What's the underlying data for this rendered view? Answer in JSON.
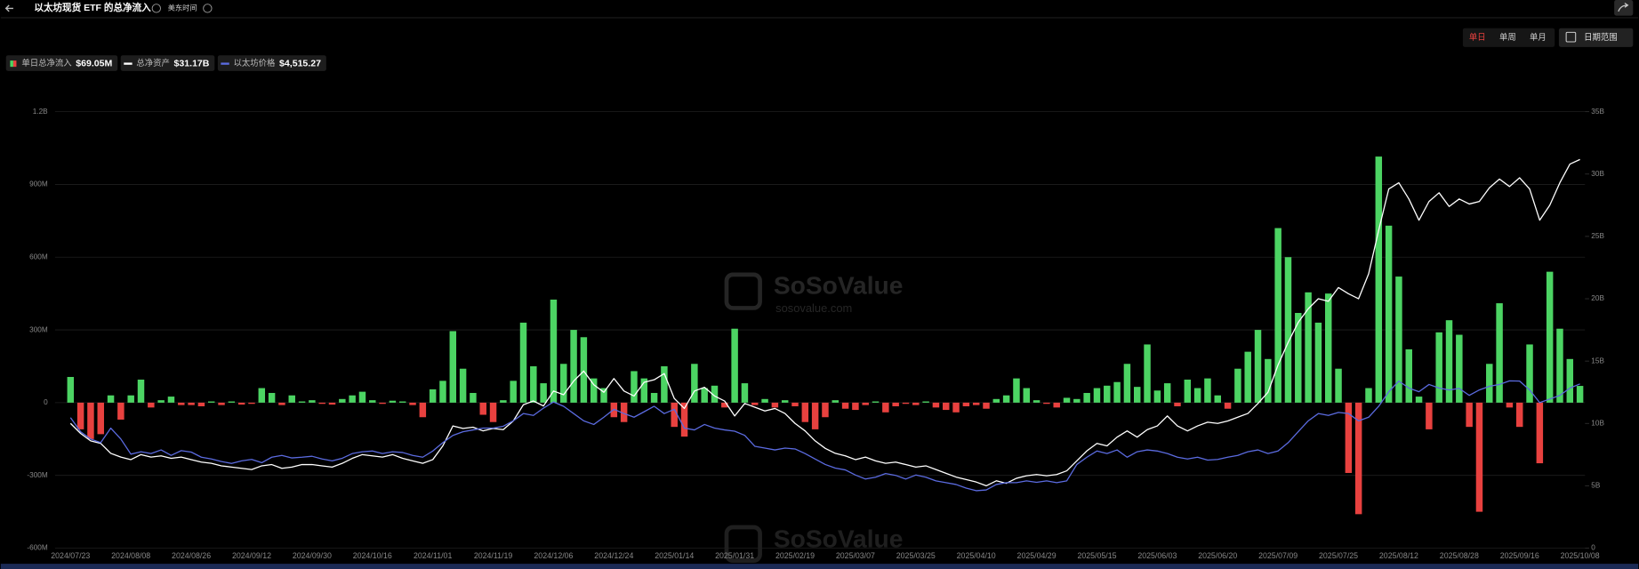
{
  "header": {
    "title": "以太坊现货 ETF 的总净流入",
    "timezone": "美东时间"
  },
  "controls": {
    "periods": [
      "单日",
      "单周",
      "单月"
    ],
    "active_period": 0,
    "date_range": "日期范围"
  },
  "watermark": {
    "name": "SoSoValue",
    "url": "sosovalue.com"
  },
  "chart_data": {
    "type": "bar",
    "categories": [
      "2024/07/23",
      null,
      null,
      null,
      null,
      null,
      "2024/08/08",
      null,
      null,
      null,
      null,
      null,
      "2024/08/26",
      null,
      null,
      null,
      null,
      null,
      "2024/09/12",
      null,
      null,
      null,
      null,
      null,
      "2024/09/30",
      null,
      null,
      null,
      null,
      null,
      "2024/10/16",
      null,
      null,
      null,
      null,
      null,
      "2024/11/01",
      null,
      null,
      null,
      null,
      null,
      "2024/11/19",
      null,
      null,
      null,
      null,
      null,
      "2024/12/06",
      null,
      null,
      null,
      null,
      null,
      "2024/12/24",
      null,
      null,
      null,
      null,
      null,
      "2025/01/14",
      null,
      null,
      null,
      null,
      null,
      "2025/01/31",
      null,
      null,
      null,
      null,
      null,
      "2025/02/19",
      null,
      null,
      null,
      null,
      null,
      "2025/03/07",
      null,
      null,
      null,
      null,
      null,
      "2025/03/25",
      null,
      null,
      null,
      null,
      null,
      "2025/04/10",
      null,
      null,
      null,
      null,
      null,
      "2025/04/29",
      null,
      null,
      null,
      null,
      null,
      "2025/05/15",
      null,
      null,
      null,
      null,
      null,
      "2025/06/03",
      null,
      null,
      null,
      null,
      null,
      "2025/06/20",
      null,
      null,
      null,
      null,
      null,
      "2025/07/09",
      null,
      null,
      null,
      null,
      null,
      "2025/07/25",
      null,
      null,
      null,
      null,
      null,
      "2025/08/12",
      null,
      null,
      null,
      null,
      null,
      "2025/08/28",
      null,
      null,
      null,
      null,
      null,
      "2025/09/16",
      null,
      null,
      null,
      null,
      null,
      "2025/10/08"
    ],
    "series": [
      {
        "name": "单日总净流入",
        "type": "bar",
        "axis": "y",
        "color": "#4cd463",
        "negative_color": "#e8413f",
        "latest_label": "$69.05M",
        "values": [
          106,
          -110,
          -150,
          -130,
          30,
          -70,
          30,
          95,
          -20,
          10,
          25,
          -10,
          -10,
          -15,
          5,
          -10,
          5,
          -8,
          -5,
          60,
          40,
          -10,
          30,
          5,
          10,
          -5,
          -8,
          15,
          30,
          45,
          10,
          -5,
          8,
          5,
          -10,
          -60,
          55,
          90,
          295,
          140,
          40,
          -50,
          -80,
          10,
          90,
          330,
          150,
          80,
          425,
          160,
          300,
          270,
          100,
          60,
          -60,
          -80,
          130,
          100,
          40,
          150,
          -100,
          -140,
          160,
          60,
          70,
          -20,
          305,
          80,
          -10,
          15,
          -20,
          10,
          -15,
          -80,
          -110,
          -60,
          10,
          -25,
          -30,
          -10,
          5,
          -40,
          -15,
          -5,
          -10,
          5,
          -20,
          -30,
          -40,
          -15,
          -10,
          -25,
          15,
          30,
          100,
          60,
          10,
          -5,
          -20,
          20,
          15,
          40,
          60,
          70,
          85,
          160,
          65,
          240,
          50,
          80,
          -15,
          95,
          60,
          100,
          30,
          -25,
          140,
          210,
          300,
          180,
          720,
          600,
          370,
          455,
          330,
          450,
          140,
          -290,
          -460,
          60,
          1015,
          730,
          520,
          220,
          25,
          -110,
          290,
          340,
          280,
          -100,
          -450,
          160,
          410,
          -20,
          -100,
          240,
          -250,
          540,
          305,
          180,
          69.05
        ]
      },
      {
        "name": "总净资产",
        "type": "line",
        "axis": "y2",
        "color": "#ffffff",
        "latest_label": "$31.17B",
        "values": [
          10.0,
          9.2,
          8.6,
          8.4,
          7.6,
          7.3,
          7.1,
          7.5,
          7.3,
          7.4,
          7.2,
          7.3,
          7.1,
          6.9,
          6.8,
          6.6,
          6.5,
          6.4,
          6.3,
          6.6,
          6.7,
          6.4,
          6.5,
          6.7,
          6.7,
          6.6,
          6.5,
          6.8,
          7.2,
          7.5,
          7.4,
          7.3,
          7.5,
          7.2,
          7.0,
          6.8,
          7.1,
          8.2,
          9.8,
          9.6,
          9.7,
          9.4,
          9.6,
          9.5,
          10.2,
          11.5,
          11.8,
          11.4,
          12.6,
          12.3,
          13.4,
          14.2,
          13.1,
          12.5,
          13.6,
          12.6,
          12.2,
          13.3,
          13.5,
          14.0,
          12.0,
          11.2,
          12.6,
          12.9,
          12.2,
          11.8,
          10.6,
          11.6,
          11.3,
          11.0,
          11.2,
          10.8,
          10.0,
          9.4,
          8.6,
          8.0,
          7.6,
          7.4,
          7.1,
          7.3,
          7.0,
          6.8,
          6.9,
          6.7,
          6.5,
          6.6,
          6.3,
          6.0,
          5.7,
          5.5,
          5.3,
          5.0,
          5.4,
          5.2,
          5.6,
          5.8,
          5.9,
          5.8,
          5.9,
          6.2,
          7.0,
          7.8,
          8.4,
          8.2,
          8.9,
          9.4,
          8.9,
          9.5,
          9.8,
          10.6,
          9.8,
          9.4,
          9.8,
          10.1,
          10.0,
          10.2,
          10.5,
          10.8,
          11.6,
          12.5,
          14.7,
          16.5,
          18.1,
          19.2,
          20.0,
          19.8,
          20.9,
          20.4,
          20.0,
          22.0,
          25.5,
          28.8,
          29.3,
          28.0,
          26.3,
          27.8,
          28.5,
          27.4,
          28.0,
          27.6,
          27.8,
          28.9,
          29.6,
          29.0,
          29.7,
          28.8,
          26.3,
          27.5,
          29.3,
          30.8,
          31.17
        ]
      },
      {
        "name": "以太坊价格",
        "type": "line",
        "axis": "y3",
        "color": "#5b6be0",
        "latest_label": "$4,515.27",
        "values": [
          3589,
          3200,
          3000,
          2900,
          3300,
          3000,
          2584,
          2650,
          2600,
          2700,
          2550,
          2680,
          2641,
          2500,
          2450,
          2380,
          2330,
          2400,
          2440,
          2350,
          2500,
          2550,
          2480,
          2500,
          2526,
          2450,
          2400,
          2470,
          2600,
          2650,
          2670,
          2600,
          2650,
          2630,
          2550,
          2500,
          2670,
          2900,
          3100,
          3200,
          3250,
          3300,
          3300,
          3350,
          3500,
          3700,
          3650,
          3850,
          4019,
          3900,
          3700,
          3500,
          3400,
          3600,
          3818,
          3700,
          3600,
          3750,
          3900,
          3700,
          3818,
          3300,
          3250,
          3400,
          3300,
          3250,
          3215,
          3100,
          2800,
          2750,
          2700,
          2750,
          2727,
          2600,
          2450,
          2300,
          2200,
          2150,
          2010,
          1900,
          1950,
          2050,
          2000,
          1900,
          2010,
          1950,
          1850,
          1800,
          1750,
          1650,
          1579,
          1600,
          1750,
          1800,
          1800,
          1850,
          1809,
          1850,
          1800,
          1850,
          2300,
          2500,
          2670,
          2600,
          2700,
          2500,
          2650,
          2700,
          2670,
          2600,
          2500,
          2450,
          2500,
          2420,
          2440,
          2500,
          2550,
          2650,
          2700,
          2600,
          2670,
          2900,
          3200,
          3500,
          3700,
          3650,
          3732,
          3700,
          3500,
          3600,
          3900,
          4300,
          4593,
          4400,
          4300,
          4500,
          4400,
          4350,
          4392,
          4200,
          4350,
          4450,
          4500,
          4600,
          4593,
          4350,
          4000,
          4100,
          4200,
          4400,
          4515.27
        ]
      }
    ],
    "ylim": [
      -600,
      1200
    ],
    "yticks": [
      {
        "value": -600,
        "label": "-600M"
      },
      {
        "value": -300,
        "label": "-300M"
      },
      0,
      {
        "value": 300,
        "label": "300M"
      },
      {
        "value": 600,
        "label": "600M"
      },
      {
        "value": 900,
        "label": "900M"
      },
      {
        "value": 1200,
        "label": "1.2B"
      }
    ],
    "y2lim": [
      0,
      35
    ],
    "y2ticks": [
      0,
      {
        "value": 5,
        "label": "5B"
      },
      {
        "value": 10,
        "label": "10B"
      },
      {
        "value": 15,
        "label": "15B"
      },
      {
        "value": 20,
        "label": "20B"
      },
      {
        "value": 25,
        "label": "25B"
      },
      {
        "value": 30,
        "label": "30B"
      },
      {
        "value": 35,
        "label": "35B"
      }
    ],
    "y3lim": [
      0,
      12000
    ],
    "grid": true
  }
}
